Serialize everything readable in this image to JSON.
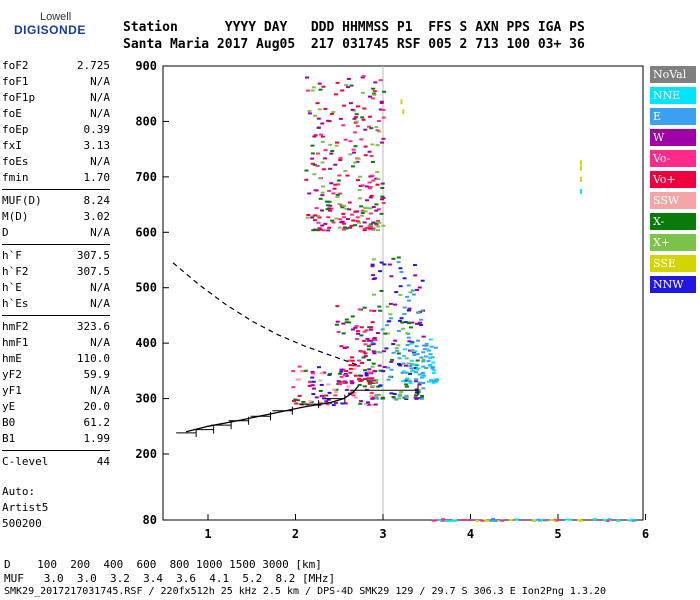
{
  "brand": {
    "line1": "Lowell",
    "line2": "DIGISONDE"
  },
  "header": {
    "row1": "Station      YYYY DAY   DDD HHMMSS P1  FFS S AXN PPS IGA PS",
    "row2": "Santa Maria 2017 Aug05  217 031745 RSF 005 2 713 100 03+ 36"
  },
  "params": [
    [
      {
        "k": "foF2",
        "v": "2.725"
      },
      {
        "k": "foF1",
        "v": "N/A"
      },
      {
        "k": "foF1p",
        "v": "N/A"
      },
      {
        "k": "foE",
        "v": "N/A"
      },
      {
        "k": "foEp",
        "v": "0.39"
      },
      {
        "k": "fxI",
        "v": "3.13"
      },
      {
        "k": "foEs",
        "v": "N/A"
      },
      {
        "k": "fmin",
        "v": "1.70"
      }
    ],
    [
      {
        "k": "MUF(D)",
        "v": "8.24"
      },
      {
        "k": "M(D)",
        "v": "3.02"
      },
      {
        "k": "D",
        "v": "N/A"
      }
    ],
    [
      {
        "k": "h`F",
        "v": "307.5"
      },
      {
        "k": "h`F2",
        "v": "307.5"
      },
      {
        "k": "h`E",
        "v": "N/A"
      },
      {
        "k": "h`Es",
        "v": "N/A"
      }
    ],
    [
      {
        "k": "hmF2",
        "v": "323.6"
      },
      {
        "k": "hmF1",
        "v": "N/A"
      },
      {
        "k": "hmE",
        "v": "110.0"
      },
      {
        "k": "yF2",
        "v": "59.9"
      },
      {
        "k": "yF1",
        "v": "N/A"
      },
      {
        "k": "yE",
        "v": "20.0"
      },
      {
        "k": "B0",
        "v": "61.2"
      },
      {
        "k": "B1",
        "v": "1.99"
      }
    ],
    [
      {
        "k": "C-level",
        "v": "44"
      }
    ]
  ],
  "auto": {
    "line1": "Auto:",
    "line2": "Artist5",
    "line3": "500200"
  },
  "footer": {
    "row1": "D    100  200  400  600  800 1000 1500 3000 [km]",
    "row2": "MUF   3.0  3.0  3.2  3.4  3.6  4.1  5.2  8.2 [MHz]",
    "row3": "SMK29_2017217031745.RSF / 220fx512h 25 kHz 2.5 km / DPS-4D SMK29 129 / 29.7 S 306.3 E Ion2Png 1.3.20"
  },
  "legend": [
    {
      "label": "NoVal",
      "color": "#7f7f7f"
    },
    {
      "label": "NNE",
      "color": "#00e5ff"
    },
    {
      "label": "E",
      "color": "#3aa0f0"
    },
    {
      "label": "W",
      "color": "#a000a8"
    },
    {
      "label": "Vo-",
      "color": "#ff2a8a"
    },
    {
      "label": "Vo+",
      "color": "#f0003c"
    },
    {
      "label": "SSW",
      "color": "#f4a6a6"
    },
    {
      "label": "X-",
      "color": "#0a7a0a"
    },
    {
      "label": "X+",
      "color": "#7cc24a"
    },
    {
      "label": "SSE",
      "color": "#d4d400"
    },
    {
      "label": "NNW",
      "color": "#2018e0"
    }
  ],
  "chart_data": {
    "type": "scatter",
    "x_ticks": [
      "1",
      "2",
      "3",
      "4",
      "5",
      "6"
    ],
    "y_ticks": [
      "80",
      "200",
      "300",
      "400",
      "500",
      "600",
      "700",
      "800",
      "900"
    ],
    "xlim": [
      0.6,
      6.0
    ],
    "y_scale": "piecewise (80 at base, then linear 200-900)",
    "grid": false,
    "vertical_marker_x": 3.0,
    "profile_curve": [
      {
        "f": 0.75,
        "h": 240
      },
      {
        "f": 1.0,
        "h": 250
      },
      {
        "f": 1.4,
        "h": 262
      },
      {
        "f": 1.8,
        "h": 275
      },
      {
        "f": 2.1,
        "h": 285
      },
      {
        "f": 2.4,
        "h": 293
      },
      {
        "f": 2.55,
        "h": 300
      },
      {
        "f": 2.65,
        "h": 310
      },
      {
        "f": 2.72,
        "h": 323
      }
    ],
    "dashed_curve": [
      {
        "f": 0.6,
        "h": 545
      },
      {
        "f": 0.9,
        "h": 505
      },
      {
        "f": 1.2,
        "h": 470
      },
      {
        "f": 1.5,
        "h": 440
      },
      {
        "f": 1.8,
        "h": 415
      },
      {
        "f": 2.1,
        "h": 395
      },
      {
        "f": 2.4,
        "h": 378
      },
      {
        "f": 2.72,
        "h": 360
      }
    ],
    "error_bars": [
      {
        "f": 0.75,
        "h": 238
      },
      {
        "f": 0.95,
        "h": 244
      },
      {
        "f": 1.15,
        "h": 252
      },
      {
        "f": 1.35,
        "h": 260
      },
      {
        "f": 1.6,
        "h": 268
      },
      {
        "f": 1.85,
        "h": 278
      },
      {
        "f": 2.15,
        "h": 290
      },
      {
        "f": 2.45,
        "h": 300
      }
    ],
    "hmf2_bar": {
      "f0": 2.62,
      "f1": 3.4,
      "h": 315
    },
    "clusters": [
      {
        "f0": 1.95,
        "f1": 2.9,
        "h0": 290,
        "h1": 360,
        "colors": [
          "Vo+",
          "Vo-",
          "W",
          "X-",
          "SSW",
          "NNW"
        ]
      },
      {
        "f0": 2.45,
        "f1": 2.9,
        "h0": 330,
        "h1": 470,
        "colors": [
          "Vo+",
          "Vo-",
          "W",
          "X-"
        ]
      },
      {
        "f0": 2.85,
        "f1": 3.45,
        "h0": 300,
        "h1": 560,
        "colors": [
          "E",
          "X-",
          "X+",
          "W",
          "NNW"
        ]
      },
      {
        "f0": 3.2,
        "f1": 3.6,
        "h0": 330,
        "h1": 410,
        "colors": [
          "E",
          "NNE"
        ]
      },
      {
        "f0": 2.1,
        "f1": 3.0,
        "h0": 605,
        "h1": 890,
        "colors": [
          "Vo-",
          "Vo+",
          "X-",
          "X+",
          "W"
        ]
      },
      {
        "f0": 3.55,
        "f1": 5.85,
        "h0": 80,
        "h1": 84,
        "colors": [
          "E",
          "NNE",
          "Vo-",
          "SSE"
        ]
      }
    ],
    "sparse_points": [
      {
        "f": 5.25,
        "h": 720,
        "c": "SSE"
      },
      {
        "f": 5.25,
        "h": 730,
        "c": "SSE"
      },
      {
        "f": 5.25,
        "h": 700,
        "c": "SSE"
      },
      {
        "f": 5.25,
        "h": 678,
        "c": "NNE"
      },
      {
        "f": 3.2,
        "h": 840,
        "c": "SSE"
      },
      {
        "f": 3.22,
        "h": 822,
        "c": "SSE"
      }
    ]
  }
}
